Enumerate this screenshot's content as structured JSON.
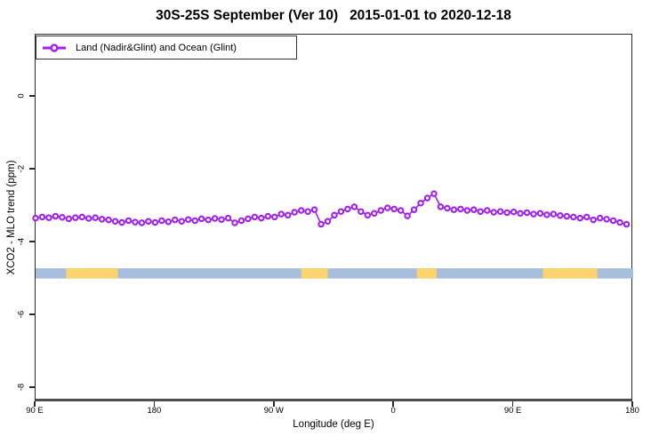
{
  "title": "30S-25S September (Ver 10)   2015-01-01 to 2020-12-18",
  "chart_data": {
    "type": "line",
    "title": "30S-25S September (Ver 10)   2015-01-01 to 2020-12-18",
    "xlabel": "Longitude (deg E)",
    "ylabel": "XCO2 - MLO trend (ppm)",
    "legend_position": "top-left",
    "legend": [
      {
        "label": "Land (Nadir&Glint) and Ocean (Glint)",
        "color": "#A020F0",
        "marker": "open-circle"
      }
    ],
    "x_axis": {
      "description": "Longitude, wrapped: starts at 90 E, goes eastward around the globe to 180 again",
      "tick_labels": [
        "90 E",
        "180",
        "90 W",
        "0",
        "90 E",
        "180"
      ],
      "tick_offsets_deg": [
        0,
        90,
        180,
        270,
        360,
        450
      ],
      "range_offset_deg": [
        0,
        450
      ]
    },
    "y_axis": {
      "tick_values": [
        0,
        -2,
        -4,
        -6,
        -8
      ],
      "range": [
        -8.39,
        1.71
      ],
      "grid": false
    },
    "series": [
      {
        "name": "Land (Nadir&Glint) and Ocean (Glint)",
        "color": "#A020F0",
        "marker": "open-circle",
        "x_offset_start_deg": 0,
        "x_offset_step_deg": 5,
        "values": [
          -3.33,
          -3.3,
          -3.32,
          -3.28,
          -3.31,
          -3.35,
          -3.32,
          -3.3,
          -3.34,
          -3.32,
          -3.36,
          -3.38,
          -3.42,
          -3.45,
          -3.4,
          -3.44,
          -3.46,
          -3.42,
          -3.45,
          -3.4,
          -3.43,
          -3.38,
          -3.42,
          -3.37,
          -3.4,
          -3.35,
          -3.38,
          -3.34,
          -3.37,
          -3.33,
          -3.46,
          -3.4,
          -3.35,
          -3.3,
          -3.33,
          -3.28,
          -3.3,
          -3.22,
          -3.25,
          -3.17,
          -3.12,
          -3.15,
          -3.1,
          -3.5,
          -3.42,
          -3.25,
          -3.15,
          -3.08,
          -3.02,
          -3.15,
          -3.25,
          -3.2,
          -3.12,
          -3.05,
          -3.08,
          -3.12,
          -3.27,
          -3.1,
          -2.92,
          -2.78,
          -2.66,
          -3.02,
          -3.06,
          -3.1,
          -3.08,
          -3.12,
          -3.1,
          -3.15,
          -3.12,
          -3.17,
          -3.15,
          -3.18,
          -3.16,
          -3.2,
          -3.18,
          -3.22,
          -3.2,
          -3.24,
          -3.22,
          -3.26,
          -3.28,
          -3.3,
          -3.33,
          -3.3,
          -3.38,
          -3.33,
          -3.36,
          -3.4,
          -3.45,
          -3.5
        ]
      }
    ],
    "surface_band": {
      "description": "ocean/land strip",
      "y_center_ppm": -4.85,
      "half_height_ppm": 0.14,
      "ocean_color": "#a6bddb",
      "land_color": "#fbd46e",
      "land_segments_offset_deg": [
        [
          23,
          62
        ],
        [
          200,
          220
        ],
        [
          287,
          302
        ],
        [
          382,
          423
        ]
      ]
    }
  }
}
